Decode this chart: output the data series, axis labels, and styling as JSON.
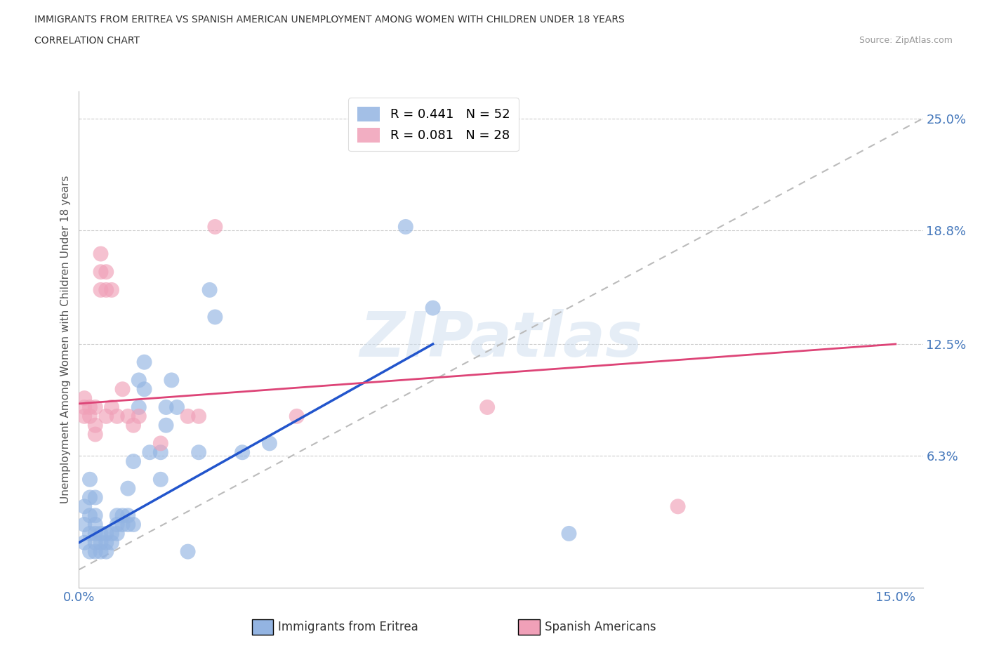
{
  "title": "IMMIGRANTS FROM ERITREA VS SPANISH AMERICAN UNEMPLOYMENT AMONG WOMEN WITH CHILDREN UNDER 18 YEARS",
  "subtitle": "CORRELATION CHART",
  "source": "Source: ZipAtlas.com",
  "ylabel": "Unemployment Among Women with Children Under 18 years",
  "xlim": [
    0.0,
    0.155
  ],
  "ylim": [
    -0.01,
    0.265
  ],
  "ytick_positions": [
    0.063,
    0.125,
    0.188,
    0.25
  ],
  "ytick_labels": [
    "6.3%",
    "12.5%",
    "18.8%",
    "25.0%"
  ],
  "xtick_positions": [
    0.0,
    0.15
  ],
  "xtick_labels": [
    "0.0%",
    "15.0%"
  ],
  "watermark": "ZIPatlas",
  "legend_eritrea_label": "R = 0.441   N = 52",
  "legend_spanish_label": "R = 0.081   N = 28",
  "eritrea_color": "#93B4E2",
  "spanish_color": "#F0A0B8",
  "trend_eritrea_color": "#2255CC",
  "trend_spanish_color": "#DD4477",
  "trend_dashed_color": "#BBBBBB",
  "eritrea_trend": [
    0.0,
    0.015,
    0.065,
    0.125
  ],
  "spanish_trend": [
    0.0,
    0.092,
    0.15,
    0.125
  ],
  "eritrea_points": [
    [
      0.001,
      0.015
    ],
    [
      0.001,
      0.025
    ],
    [
      0.001,
      0.035
    ],
    [
      0.002,
      0.01
    ],
    [
      0.002,
      0.02
    ],
    [
      0.002,
      0.03
    ],
    [
      0.002,
      0.04
    ],
    [
      0.002,
      0.05
    ],
    [
      0.003,
      0.01
    ],
    [
      0.003,
      0.015
    ],
    [
      0.003,
      0.02
    ],
    [
      0.003,
      0.025
    ],
    [
      0.003,
      0.03
    ],
    [
      0.003,
      0.04
    ],
    [
      0.004,
      0.01
    ],
    [
      0.004,
      0.015
    ],
    [
      0.004,
      0.02
    ],
    [
      0.005,
      0.01
    ],
    [
      0.005,
      0.015
    ],
    [
      0.005,
      0.02
    ],
    [
      0.006,
      0.015
    ],
    [
      0.006,
      0.02
    ],
    [
      0.007,
      0.02
    ],
    [
      0.007,
      0.025
    ],
    [
      0.007,
      0.03
    ],
    [
      0.008,
      0.025
    ],
    [
      0.008,
      0.03
    ],
    [
      0.009,
      0.025
    ],
    [
      0.009,
      0.03
    ],
    [
      0.009,
      0.045
    ],
    [
      0.01,
      0.025
    ],
    [
      0.01,
      0.06
    ],
    [
      0.011,
      0.09
    ],
    [
      0.011,
      0.105
    ],
    [
      0.012,
      0.1
    ],
    [
      0.012,
      0.115
    ],
    [
      0.013,
      0.065
    ],
    [
      0.015,
      0.05
    ],
    [
      0.015,
      0.065
    ],
    [
      0.016,
      0.08
    ],
    [
      0.016,
      0.09
    ],
    [
      0.017,
      0.105
    ],
    [
      0.018,
      0.09
    ],
    [
      0.02,
      0.01
    ],
    [
      0.022,
      0.065
    ],
    [
      0.024,
      0.155
    ],
    [
      0.025,
      0.14
    ],
    [
      0.03,
      0.065
    ],
    [
      0.035,
      0.07
    ],
    [
      0.06,
      0.19
    ],
    [
      0.065,
      0.145
    ],
    [
      0.09,
      0.02
    ]
  ],
  "spanish_points": [
    [
      0.001,
      0.085
    ],
    [
      0.001,
      0.09
    ],
    [
      0.001,
      0.095
    ],
    [
      0.002,
      0.085
    ],
    [
      0.002,
      0.09
    ],
    [
      0.003,
      0.075
    ],
    [
      0.003,
      0.08
    ],
    [
      0.003,
      0.09
    ],
    [
      0.004,
      0.155
    ],
    [
      0.004,
      0.165
    ],
    [
      0.004,
      0.175
    ],
    [
      0.005,
      0.085
    ],
    [
      0.005,
      0.155
    ],
    [
      0.005,
      0.165
    ],
    [
      0.006,
      0.09
    ],
    [
      0.006,
      0.155
    ],
    [
      0.007,
      0.085
    ],
    [
      0.008,
      0.1
    ],
    [
      0.009,
      0.085
    ],
    [
      0.01,
      0.08
    ],
    [
      0.011,
      0.085
    ],
    [
      0.015,
      0.07
    ],
    [
      0.02,
      0.085
    ],
    [
      0.022,
      0.085
    ],
    [
      0.025,
      0.19
    ],
    [
      0.04,
      0.085
    ],
    [
      0.075,
      0.09
    ],
    [
      0.11,
      0.035
    ]
  ]
}
